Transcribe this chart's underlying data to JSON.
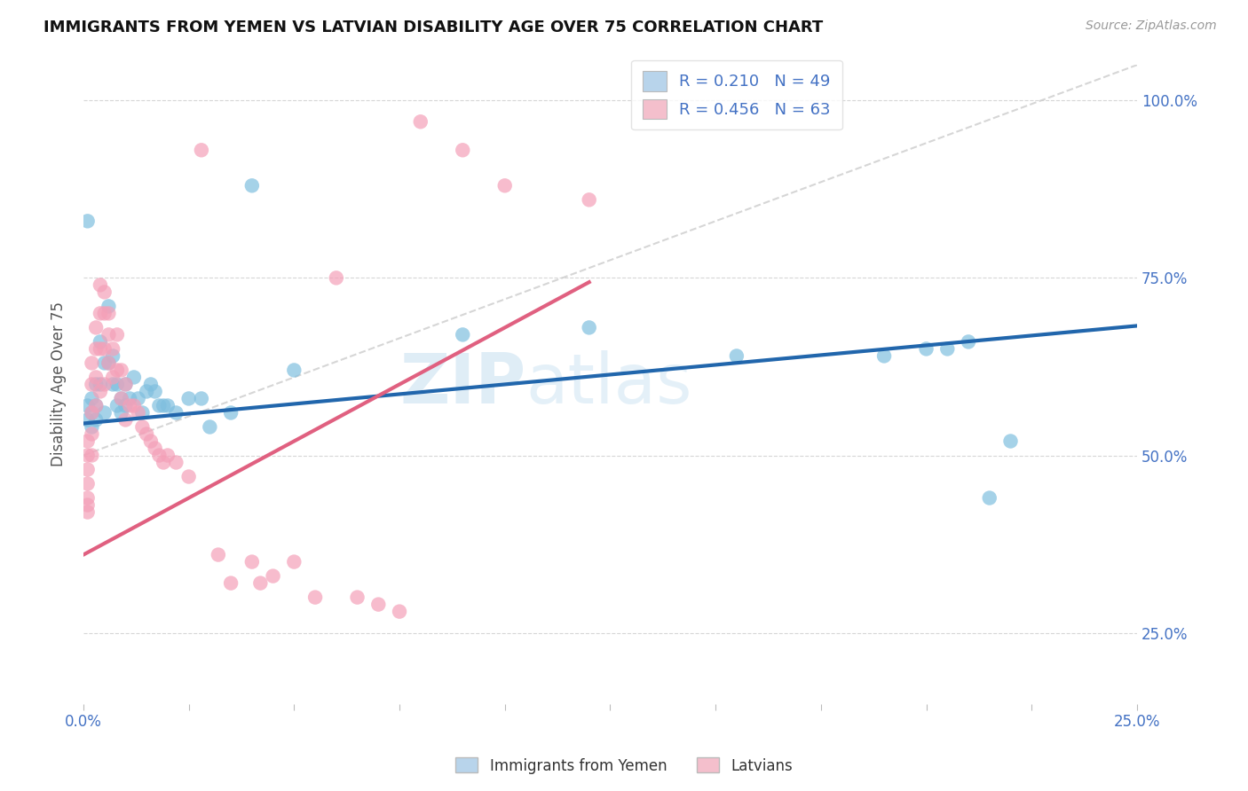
{
  "title": "IMMIGRANTS FROM YEMEN VS LATVIAN DISABILITY AGE OVER 75 CORRELATION CHART",
  "source": "Source: ZipAtlas.com",
  "ylabel": "Disability Age Over 75",
  "xlabel_legend1": "Immigrants from Yemen",
  "xlabel_legend2": "Latvians",
  "r1": 0.21,
  "n1": 49,
  "r2": 0.456,
  "n2": 63,
  "color1": "#7fbfdf",
  "color2": "#f4a0b8",
  "line_color1": "#2166ac",
  "line_color2": "#e06080",
  "ref_line_color": "#cccccc",
  "axis_color": "#4472c4",
  "grid_color": "#cccccc",
  "xmin": 0.0,
  "xmax": 0.25,
  "ymin": 0.15,
  "ymax": 1.05,
  "yticks": [
    0.25,
    0.5,
    0.75,
    1.0
  ],
  "watermark": "ZIPatlas",
  "background_color": "#ffffff",
  "legend_box_color1": "#b8d4eb",
  "legend_box_color2": "#f4bfcc",
  "blue_intercept": 0.545,
  "blue_slope": 0.55,
  "pink_intercept": 0.36,
  "pink_slope": 3.2,
  "blue_points_x": [
    0.001,
    0.001,
    0.001,
    0.002,
    0.002,
    0.002,
    0.003,
    0.003,
    0.003,
    0.004,
    0.004,
    0.005,
    0.005,
    0.006,
    0.006,
    0.007,
    0.007,
    0.008,
    0.008,
    0.009,
    0.009,
    0.01,
    0.01,
    0.011,
    0.012,
    0.013,
    0.014,
    0.015,
    0.016,
    0.017,
    0.018,
    0.019,
    0.02,
    0.022,
    0.025,
    0.028,
    0.03,
    0.035,
    0.04,
    0.05,
    0.09,
    0.12,
    0.155,
    0.19,
    0.2,
    0.205,
    0.21,
    0.215,
    0.22
  ],
  "blue_points_y": [
    0.55,
    0.57,
    0.83,
    0.56,
    0.58,
    0.54,
    0.6,
    0.57,
    0.55,
    0.66,
    0.6,
    0.63,
    0.56,
    0.71,
    0.63,
    0.64,
    0.6,
    0.6,
    0.57,
    0.58,
    0.56,
    0.6,
    0.57,
    0.58,
    0.61,
    0.58,
    0.56,
    0.59,
    0.6,
    0.59,
    0.57,
    0.57,
    0.57,
    0.56,
    0.58,
    0.58,
    0.54,
    0.56,
    0.88,
    0.62,
    0.67,
    0.68,
    0.64,
    0.64,
    0.65,
    0.65,
    0.66,
    0.44,
    0.52
  ],
  "pink_points_x": [
    0.001,
    0.001,
    0.001,
    0.001,
    0.001,
    0.001,
    0.001,
    0.002,
    0.002,
    0.002,
    0.002,
    0.002,
    0.003,
    0.003,
    0.003,
    0.003,
    0.004,
    0.004,
    0.004,
    0.004,
    0.005,
    0.005,
    0.005,
    0.005,
    0.006,
    0.006,
    0.006,
    0.007,
    0.007,
    0.008,
    0.008,
    0.009,
    0.009,
    0.01,
    0.01,
    0.011,
    0.012,
    0.013,
    0.014,
    0.015,
    0.016,
    0.017,
    0.018,
    0.019,
    0.02,
    0.022,
    0.025,
    0.028,
    0.032,
    0.035,
    0.04,
    0.042,
    0.045,
    0.05,
    0.055,
    0.06,
    0.065,
    0.07,
    0.075,
    0.08,
    0.09,
    0.1,
    0.12
  ],
  "pink_points_y": [
    0.52,
    0.5,
    0.48,
    0.46,
    0.44,
    0.43,
    0.42,
    0.63,
    0.6,
    0.56,
    0.53,
    0.5,
    0.68,
    0.65,
    0.61,
    0.57,
    0.74,
    0.7,
    0.65,
    0.59,
    0.73,
    0.7,
    0.65,
    0.6,
    0.7,
    0.67,
    0.63,
    0.65,
    0.61,
    0.67,
    0.62,
    0.62,
    0.58,
    0.6,
    0.55,
    0.57,
    0.57,
    0.56,
    0.54,
    0.53,
    0.52,
    0.51,
    0.5,
    0.49,
    0.5,
    0.49,
    0.47,
    0.93,
    0.36,
    0.32,
    0.35,
    0.32,
    0.33,
    0.35,
    0.3,
    0.75,
    0.3,
    0.29,
    0.28,
    0.97,
    0.93,
    0.88,
    0.86
  ]
}
